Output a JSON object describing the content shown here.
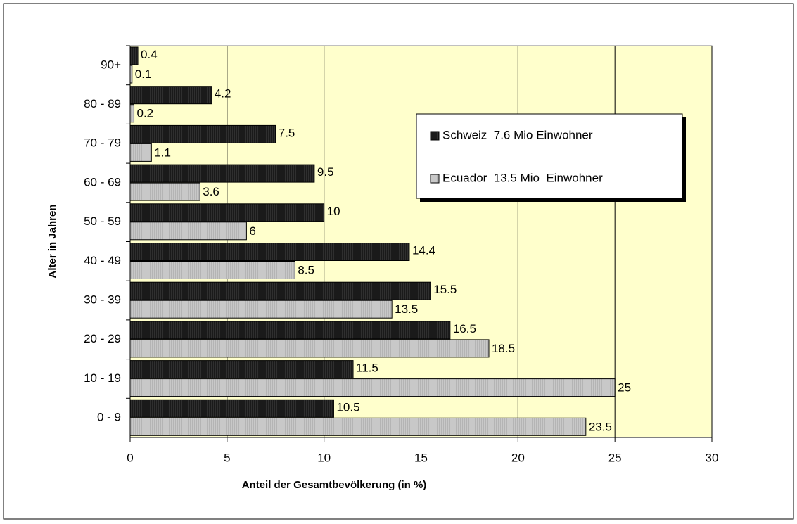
{
  "chart_data": {
    "type": "bar",
    "orientation": "horizontal",
    "x_label": "Anteil der Gesamtbevölkerung (in %)",
    "y_label": "Alter in Jahren",
    "categories": [
      "0 - 9",
      "10 - 19",
      "20 - 29",
      "30 - 39",
      "40 - 49",
      "50 - 59",
      "60 - 69",
      "70 - 79",
      "80 - 89",
      "90+"
    ],
    "series": [
      {
        "name": "Schweiz  7.6 Mio Einwohner",
        "color": "#1a1a1a",
        "values": [
          10.5,
          11.5,
          16.5,
          15.5,
          14.4,
          10,
          9.5,
          7.5,
          4.2,
          0.4
        ]
      },
      {
        "name": "Ecuador  13.5 Mio  Einwohner",
        "color": "#c0c0c0",
        "values": [
          23.5,
          25,
          18.5,
          13.5,
          8.5,
          6,
          3.6,
          1.1,
          0.2,
          0.1
        ]
      }
    ],
    "xlim": [
      0,
      30
    ],
    "xticks": [
      0,
      5,
      10,
      15,
      20,
      25,
      30
    ],
    "grid": true
  }
}
